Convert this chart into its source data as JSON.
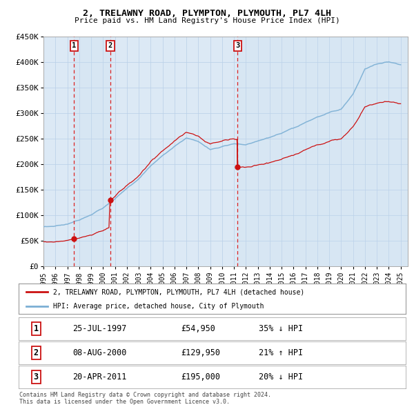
{
  "title": "2, TRELAWNY ROAD, PLYMPTON, PLYMOUTH, PL7 4LH",
  "subtitle": "Price paid vs. HM Land Registry's House Price Index (HPI)",
  "y_ticks": [
    0,
    50000,
    100000,
    150000,
    200000,
    250000,
    300000,
    350000,
    400000,
    450000
  ],
  "y_tick_labels": [
    "£0",
    "£50K",
    "£100K",
    "£150K",
    "£200K",
    "£250K",
    "£300K",
    "£350K",
    "£400K",
    "£450K"
  ],
  "purchases": [
    {
      "date": "25-JUL-1997",
      "year": 1997.57,
      "price": 54950,
      "label": "1"
    },
    {
      "date": "08-AUG-2000",
      "year": 2000.61,
      "price": 129950,
      "label": "2"
    },
    {
      "date": "20-APR-2011",
      "year": 2011.3,
      "price": 195000,
      "label": "3"
    }
  ],
  "sale_annotations": [
    {
      "label": "1",
      "date": "25-JUL-1997",
      "price": "£54,950",
      "hpi": "35% ↓ HPI"
    },
    {
      "label": "2",
      "date": "08-AUG-2000",
      "price": "£129,950",
      "hpi": "21% ↑ HPI"
    },
    {
      "label": "3",
      "date": "20-APR-2011",
      "price": "£195,000",
      "hpi": "20% ↓ HPI"
    }
  ],
  "hpi_line_color": "#7bafd4",
  "price_line_color": "#cc1111",
  "dot_color": "#cc1111",
  "vline_color": "#dd2222",
  "plot_bg_color": "#dce9f5",
  "legend_label_property": "2, TRELAWNY ROAD, PLYMPTON, PLYMOUTH, PL7 4LH (detached house)",
  "legend_label_hpi": "HPI: Average price, detached house, City of Plymouth",
  "footer": "Contains HM Land Registry data © Crown copyright and database right 2024.\nThis data is licensed under the Open Government Licence v3.0."
}
